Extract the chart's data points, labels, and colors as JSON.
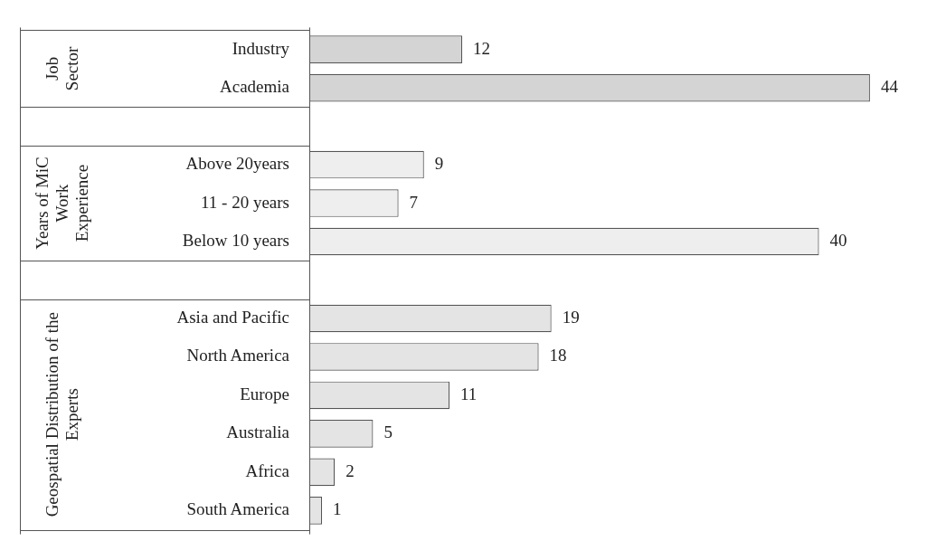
{
  "chart_data": {
    "type": "bar",
    "orientation": "horizontal",
    "data_labels": true,
    "legend": false,
    "grid": false,
    "categories": [
      "Industry",
      "Academia",
      null,
      "Above 20years",
      "11 - 20 years",
      "Below 10 years",
      null,
      "Asia and Pacific",
      "North America",
      "Europe",
      "Australia",
      "Africa",
      "South America"
    ],
    "values": [
      12,
      44,
      null,
      9,
      7,
      40,
      null,
      19,
      18,
      11,
      5,
      2,
      1
    ],
    "colors": [
      "#d4d4d4",
      "#d4d4d4",
      "#d4d4d4",
      "#eeeeee",
      "#eeeeee",
      "#eeeeee",
      "#eeeeee",
      "#e4e4e4",
      "#e4e4e4",
      "#e4e4e4",
      "#e4e4e4",
      "#e4e4e4",
      "#e4e4e4"
    ],
    "annotations": [
      "Job Sector",
      "Years of MiC Work Experience",
      "Geospatial Distribution of the Experts"
    ]
  }
}
